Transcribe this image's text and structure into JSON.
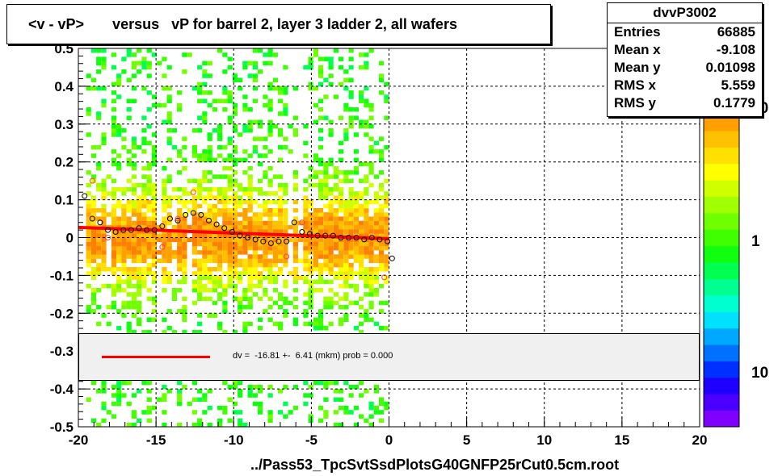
{
  "title": "<v - vP>       versus   vP for barrel 2, layer 3 ladder 2, all wafers",
  "stats": {
    "name": "dvvP3002",
    "rows": [
      {
        "label": "Entries",
        "value": "66885"
      },
      {
        "label": "Mean x",
        "value": "-9.108"
      },
      {
        "label": "Mean y",
        "value": "0.01098"
      },
      {
        "label": "RMS x",
        "value": "5.559"
      },
      {
        "label": "RMS y",
        "value": "0.1779"
      }
    ]
  },
  "fit_legend": {
    "text": "dv =  -16.81 +-  6.41 (mkm) prob = 0.000",
    "line_color": "#ff0000"
  },
  "colors": {
    "profile_markers": "#000000",
    "fit_line": "#ff0000",
    "grid": "#000000"
  },
  "chart_data": {
    "type": "heatmap",
    "title": "<v - vP>       versus   vP for barrel 2, layer 3 ladder 2, all wafers",
    "xlabel": "../Pass53_TpcSvtSsdPlotsG40GNFP25rCut0.5cm.root",
    "ylabel": "",
    "xlim": [
      -20,
      20
    ],
    "ylim": [
      -0.5,
      0.5
    ],
    "x_ticks": [
      "-20",
      "-15",
      "-10",
      "-5",
      "0",
      "5",
      "10",
      "15",
      "20"
    ],
    "y_ticks": [
      "-0.5",
      "-0.4",
      "-0.3",
      "-0.2",
      "-0.1",
      "0",
      "0.1",
      "0.2",
      "0.3",
      "0.4",
      "0.5"
    ],
    "grid": true,
    "colorbar": {
      "scale": "log",
      "tick_labels": [
        "10",
        "1",
        "10"
      ],
      "colors": [
        "#7f00ff",
        "#4b00ff",
        "#1e00ff",
        "#0030ff",
        "#0070ff",
        "#00a8ff",
        "#00e0ff",
        "#00ffd0",
        "#00ff90",
        "#00ff50",
        "#10ff10",
        "#40ff00",
        "#70ff00",
        "#a0ff00",
        "#d0ff00",
        "#ffff00",
        "#ffe000",
        "#ffc000",
        "#ffa000",
        "#ff8000",
        "#ff6000",
        "#ff4000",
        "#ff2000"
      ]
    },
    "occupied_x_range": [
      -19.5,
      0
    ],
    "gap_columns": [
      -17.9,
      -14.7,
      -13.7,
      -12.7,
      -6.2,
      -5.6
    ],
    "profile": {
      "x": [
        -19.6,
        -19.1,
        -18.6,
        -18.1,
        -17.6,
        -17.1,
        -16.6,
        -16.1,
        -15.6,
        -15.1,
        -14.6,
        -14.1,
        -13.6,
        -13.1,
        -12.6,
        -12.1,
        -11.6,
        -11.1,
        -10.6,
        -10.1,
        -9.6,
        -9.1,
        -8.6,
        -8.1,
        -7.6,
        -7.1,
        -6.6,
        -6.1,
        -5.6,
        -5.1,
        -4.6,
        -4.1,
        -3.6,
        -3.1,
        -2.6,
        -2.1,
        -1.6,
        -1.1,
        -0.6,
        -0.1,
        0.2
      ],
      "y": [
        0.11,
        0.05,
        0.04,
        0.02,
        0.015,
        0.02,
        0.02,
        0.025,
        0.02,
        0.02,
        0.03,
        0.05,
        0.045,
        0.06,
        0.065,
        0.06,
        0.045,
        0.035,
        0.025,
        0.015,
        0.005,
        0.0,
        -0.005,
        -0.01,
        -0.015,
        -0.01,
        -0.01,
        0.04,
        0.015,
        0.01,
        0.005,
        0.005,
        0.005,
        0.0,
        0.0,
        0.0,
        -0.005,
        0.0,
        -0.005,
        -0.01,
        -0.055
      ]
    },
    "profile_outliers": {
      "x": [
        -19.1,
        -18.1,
        -14.6,
        -13.6,
        -12.6,
        -6.6,
        -5.6,
        -0.3
      ],
      "y": [
        0.15,
        0.0,
        -0.025,
        0.05,
        0.12,
        -0.05,
        0.04,
        -0.105
      ]
    },
    "fit": {
      "x": [
        -20,
        0
      ],
      "y": [
        0.027,
        -0.003
      ]
    }
  }
}
